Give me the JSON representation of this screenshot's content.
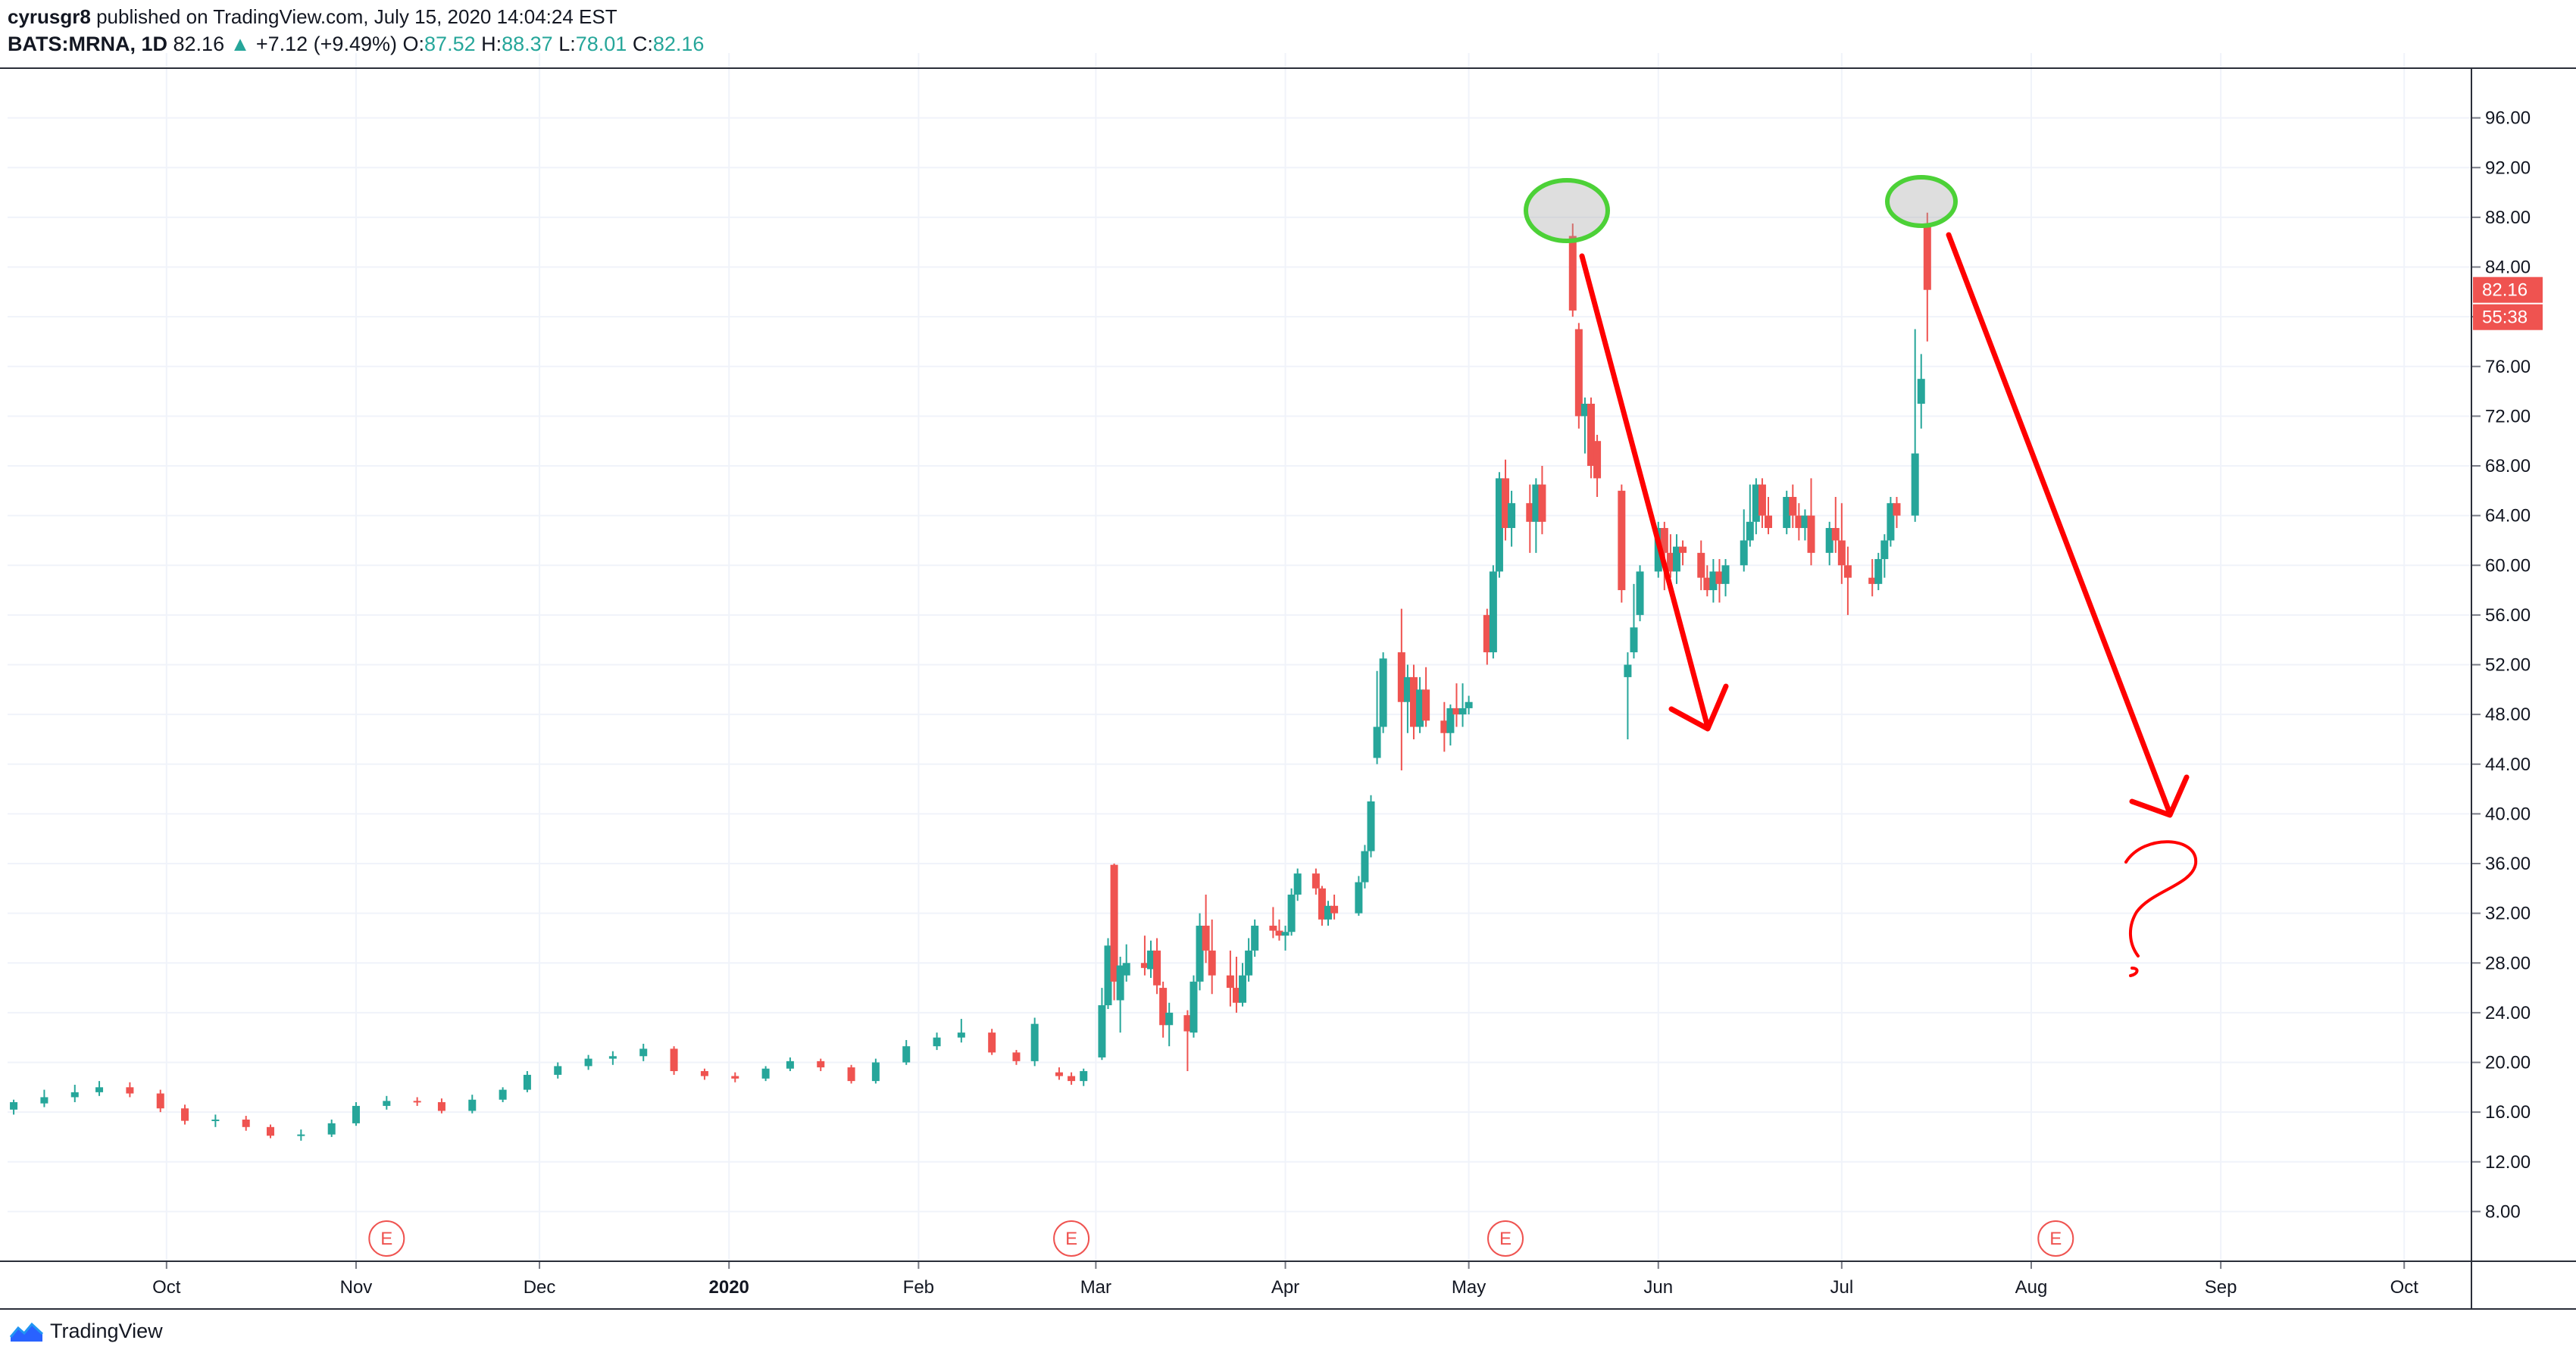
{
  "header": {
    "author": "cyrusgr8",
    "published": " published on TradingView.com, July 15, 2020 14:04:24 EST"
  },
  "legend": {
    "symbol": "BATS:MRNA, 1D",
    "last": "82.16",
    "change": "+7.12 (+9.49%)",
    "o_label": "O:",
    "o": "87.52",
    "h_label": "H:",
    "h": "88.37",
    "l_label": "L:",
    "l": "78.01",
    "c_label": "C:",
    "c": "82.16"
  },
  "branding": {
    "logo_text": "TradingView",
    "logo_icon": "tradingview-logo-icon"
  },
  "colors": {
    "up": "#26a69a",
    "down": "#ef5350",
    "grid": "#f0f3fa",
    "annotation": "#ff0000",
    "highlight": "#4cd137"
  },
  "price_tags": {
    "last_price": "82.16",
    "countdown": "55:38"
  },
  "earnings_marker": "E",
  "chart_data": {
    "type": "candlestick",
    "title": "",
    "ylim": [
      4,
      100
    ],
    "y_ticks": [
      "96.00",
      "92.00",
      "88.00",
      "84.00",
      "80.00",
      "76.00",
      "72.00",
      "68.00",
      "64.00",
      "60.00",
      "56.00",
      "52.00",
      "48.00",
      "44.00",
      "40.00",
      "36.00",
      "32.00",
      "28.00",
      "24.00",
      "20.00",
      "16.00",
      "12.00",
      "8.00"
    ],
    "x_tick_labels": [
      "Oct",
      "Nov",
      "Dec",
      "2020",
      "Feb",
      "Mar",
      "Apr",
      "May",
      "Jun",
      "Jul",
      "Aug",
      "Sep",
      "Oct"
    ],
    "x_tick_dates": [
      "2019-10-01",
      "2019-11-01",
      "2019-12-01",
      "2020-01-01",
      "2020-02-01",
      "2020-03-01",
      "2020-04-01",
      "2020-05-01",
      "2020-06-01",
      "2020-07-01",
      "2020-08-01",
      "2020-09-01",
      "2020-10-01"
    ],
    "xlim": [
      "2019-09-05",
      "2020-10-12"
    ],
    "earnings_dates": [
      "2019-11-06",
      "2020-02-26",
      "2020-05-07",
      "2020-08-05"
    ],
    "candles": [
      {
        "d": "2019-09-06",
        "o": 16.2,
        "h": 17.0,
        "l": 15.8,
        "c": 16.8
      },
      {
        "d": "2019-09-11",
        "o": 16.7,
        "h": 17.8,
        "l": 16.4,
        "c": 17.2
      },
      {
        "d": "2019-09-16",
        "o": 17.2,
        "h": 18.2,
        "l": 16.8,
        "c": 17.6
      },
      {
        "d": "2019-09-20",
        "o": 17.6,
        "h": 18.5,
        "l": 17.3,
        "c": 18.0
      },
      {
        "d": "2019-09-25",
        "o": 18.0,
        "h": 18.4,
        "l": 17.2,
        "c": 17.5
      },
      {
        "d": "2019-09-30",
        "o": 17.5,
        "h": 17.8,
        "l": 16.0,
        "c": 16.3
      },
      {
        "d": "2019-10-04",
        "o": 16.3,
        "h": 16.6,
        "l": 15.0,
        "c": 15.3
      },
      {
        "d": "2019-10-09",
        "o": 15.3,
        "h": 15.8,
        "l": 14.8,
        "c": 15.4
      },
      {
        "d": "2019-10-14",
        "o": 15.4,
        "h": 15.7,
        "l": 14.5,
        "c": 14.8
      },
      {
        "d": "2019-10-18",
        "o": 14.8,
        "h": 15.0,
        "l": 13.9,
        "c": 14.1
      },
      {
        "d": "2019-10-23",
        "o": 14.1,
        "h": 14.6,
        "l": 13.7,
        "c": 14.2
      },
      {
        "d": "2019-10-28",
        "o": 14.2,
        "h": 15.4,
        "l": 14.0,
        "c": 15.1
      },
      {
        "d": "2019-11-01",
        "o": 15.1,
        "h": 16.8,
        "l": 14.9,
        "c": 16.5
      },
      {
        "d": "2019-11-06",
        "o": 16.5,
        "h": 17.3,
        "l": 16.2,
        "c": 16.9
      },
      {
        "d": "2019-11-11",
        "o": 16.9,
        "h": 17.2,
        "l": 16.5,
        "c": 16.8
      },
      {
        "d": "2019-11-15",
        "o": 16.8,
        "h": 17.1,
        "l": 15.9,
        "c": 16.1
      },
      {
        "d": "2019-11-20",
        "o": 16.1,
        "h": 17.4,
        "l": 15.9,
        "c": 17.0
      },
      {
        "d": "2019-11-25",
        "o": 17.0,
        "h": 18.0,
        "l": 16.8,
        "c": 17.8
      },
      {
        "d": "2019-11-29",
        "o": 17.8,
        "h": 19.3,
        "l": 17.6,
        "c": 19.0
      },
      {
        "d": "2019-12-04",
        "o": 19.0,
        "h": 20.0,
        "l": 18.7,
        "c": 19.7
      },
      {
        "d": "2019-12-09",
        "o": 19.7,
        "h": 20.6,
        "l": 19.4,
        "c": 20.3
      },
      {
        "d": "2019-12-13",
        "o": 20.3,
        "h": 20.9,
        "l": 19.8,
        "c": 20.5
      },
      {
        "d": "2019-12-18",
        "o": 20.5,
        "h": 21.5,
        "l": 20.1,
        "c": 21.1
      },
      {
        "d": "2019-12-23",
        "o": 21.1,
        "h": 21.3,
        "l": 19.0,
        "c": 19.3
      },
      {
        "d": "2019-12-28",
        "o": 19.3,
        "h": 19.5,
        "l": 18.6,
        "c": 18.9
      },
      {
        "d": "2020-01-02",
        "o": 18.9,
        "h": 19.2,
        "l": 18.4,
        "c": 18.7
      },
      {
        "d": "2020-01-07",
        "o": 18.7,
        "h": 19.7,
        "l": 18.5,
        "c": 19.5
      },
      {
        "d": "2020-01-11",
        "o": 19.5,
        "h": 20.4,
        "l": 19.3,
        "c": 20.1
      },
      {
        "d": "2020-01-16",
        "o": 20.1,
        "h": 20.3,
        "l": 19.3,
        "c": 19.6
      },
      {
        "d": "2020-01-21",
        "o": 19.6,
        "h": 19.8,
        "l": 18.3,
        "c": 18.5
      },
      {
        "d": "2020-01-25",
        "o": 18.5,
        "h": 20.3,
        "l": 18.3,
        "c": 20.0
      },
      {
        "d": "2020-01-30",
        "o": 20.0,
        "h": 21.8,
        "l": 19.8,
        "c": 21.3
      },
      {
        "d": "2020-02-04",
        "o": 21.3,
        "h": 22.4,
        "l": 21.0,
        "c": 22.0
      },
      {
        "d": "2020-02-08",
        "o": 22.0,
        "h": 23.5,
        "l": 21.6,
        "c": 22.4
      },
      {
        "d": "2020-02-13",
        "o": 22.4,
        "h": 22.7,
        "l": 20.6,
        "c": 20.8
      },
      {
        "d": "2020-02-17",
        "o": 20.8,
        "h": 21.0,
        "l": 19.8,
        "c": 20.1
      },
      {
        "d": "2020-02-20",
        "o": 20.1,
        "h": 23.6,
        "l": 19.7,
        "c": 23.1
      },
      {
        "d": "2020-02-24",
        "o": 19.2,
        "h": 19.6,
        "l": 18.6,
        "c": 18.9
      },
      {
        "d": "2020-02-26",
        "o": 18.9,
        "h": 19.2,
        "l": 18.2,
        "c": 18.5
      },
      {
        "d": "2020-02-28",
        "o": 18.5,
        "h": 19.5,
        "l": 18.1,
        "c": 19.3
      },
      {
        "d": "2020-03-02",
        "o": 20.4,
        "h": 26.0,
        "l": 20.2,
        "c": 24.6
      },
      {
        "d": "2020-03-03",
        "o": 24.6,
        "h": 30.0,
        "l": 24.3,
        "c": 29.4
      },
      {
        "d": "2020-03-04",
        "o": 35.9,
        "h": 36.0,
        "l": 25.0,
        "c": 26.5
      },
      {
        "d": "2020-03-05",
        "o": 25.0,
        "h": 28.5,
        "l": 22.4,
        "c": 27.8
      },
      {
        "d": "2020-03-06",
        "o": 27.0,
        "h": 29.5,
        "l": 26.5,
        "c": 28.0
      },
      {
        "d": "2020-03-09",
        "o": 28.0,
        "h": 30.2,
        "l": 27.0,
        "c": 27.6
      },
      {
        "d": "2020-03-10",
        "o": 27.5,
        "h": 29.8,
        "l": 26.8,
        "c": 29.0
      },
      {
        "d": "2020-03-11",
        "o": 29.0,
        "h": 30.0,
        "l": 25.5,
        "c": 26.2
      },
      {
        "d": "2020-03-12",
        "o": 26.0,
        "h": 26.5,
        "l": 22.0,
        "c": 23.0
      },
      {
        "d": "2020-03-13",
        "o": 23.0,
        "h": 24.8,
        "l": 21.3,
        "c": 24.0
      },
      {
        "d": "2020-03-16",
        "o": 23.8,
        "h": 24.2,
        "l": 19.3,
        "c": 22.5
      },
      {
        "d": "2020-03-17",
        "o": 22.4,
        "h": 27.0,
        "l": 22.0,
        "c": 26.5
      },
      {
        "d": "2020-03-18",
        "o": 26.5,
        "h": 32.0,
        "l": 25.8,
        "c": 31.0
      },
      {
        "d": "2020-03-19",
        "o": 31.0,
        "h": 33.5,
        "l": 28.0,
        "c": 29.0
      },
      {
        "d": "2020-03-20",
        "o": 29.0,
        "h": 31.5,
        "l": 25.5,
        "c": 27.0
      },
      {
        "d": "2020-03-23",
        "o": 27.0,
        "h": 29.0,
        "l": 24.5,
        "c": 26.0
      },
      {
        "d": "2020-03-24",
        "o": 26.0,
        "h": 28.5,
        "l": 24.0,
        "c": 24.8
      },
      {
        "d": "2020-03-25",
        "o": 24.8,
        "h": 28.0,
        "l": 24.5,
        "c": 27.0
      },
      {
        "d": "2020-03-26",
        "o": 27.0,
        "h": 30.0,
        "l": 26.5,
        "c": 29.0
      },
      {
        "d": "2020-03-27",
        "o": 29.0,
        "h": 31.5,
        "l": 28.5,
        "c": 31.0
      },
      {
        "d": "2020-03-30",
        "o": 31.0,
        "h": 32.5,
        "l": 30.0,
        "c": 30.6
      },
      {
        "d": "2020-03-31",
        "o": 30.6,
        "h": 31.5,
        "l": 29.8,
        "c": 30.2
      },
      {
        "d": "2020-04-01",
        "o": 30.2,
        "h": 31.0,
        "l": 29.0,
        "c": 30.5
      },
      {
        "d": "2020-04-02",
        "o": 30.5,
        "h": 34.0,
        "l": 30.2,
        "c": 33.5
      },
      {
        "d": "2020-04-03",
        "o": 33.5,
        "h": 35.6,
        "l": 33.0,
        "c": 35.2
      },
      {
        "d": "2020-04-06",
        "o": 35.2,
        "h": 35.6,
        "l": 33.5,
        "c": 34.0
      },
      {
        "d": "2020-04-07",
        "o": 34.0,
        "h": 34.2,
        "l": 31.0,
        "c": 31.5
      },
      {
        "d": "2020-04-08",
        "o": 31.5,
        "h": 33.0,
        "l": 31.0,
        "c": 32.6
      },
      {
        "d": "2020-04-09",
        "o": 32.6,
        "h": 33.5,
        "l": 31.5,
        "c": 32.0
      },
      {
        "d": "2020-04-13",
        "o": 32.0,
        "h": 35.0,
        "l": 31.8,
        "c": 34.5
      },
      {
        "d": "2020-04-14",
        "o": 34.5,
        "h": 37.5,
        "l": 34.0,
        "c": 37.0
      },
      {
        "d": "2020-04-15",
        "o": 37.0,
        "h": 41.5,
        "l": 36.5,
        "c": 41.0
      },
      {
        "d": "2020-04-16",
        "o": 44.5,
        "h": 51.5,
        "l": 44.0,
        "c": 47.0
      },
      {
        "d": "2020-04-17",
        "o": 47.0,
        "h": 53.0,
        "l": 46.5,
        "c": 52.5
      },
      {
        "d": "2020-04-20",
        "o": 53.0,
        "h": 56.5,
        "l": 43.5,
        "c": 49.0
      },
      {
        "d": "2020-04-21",
        "o": 49.0,
        "h": 52.0,
        "l": 46.5,
        "c": 51.0
      },
      {
        "d": "2020-04-22",
        "o": 51.0,
        "h": 52.0,
        "l": 46.0,
        "c": 47.0
      },
      {
        "d": "2020-04-23",
        "o": 47.0,
        "h": 51.0,
        "l": 46.5,
        "c": 50.0
      },
      {
        "d": "2020-04-24",
        "o": 50.0,
        "h": 51.8,
        "l": 47.0,
        "c": 47.5
      },
      {
        "d": "2020-04-27",
        "o": 47.5,
        "h": 49.0,
        "l": 45.0,
        "c": 46.5
      },
      {
        "d": "2020-04-28",
        "o": 46.5,
        "h": 48.8,
        "l": 45.5,
        "c": 48.5
      },
      {
        "d": "2020-04-29",
        "o": 48.5,
        "h": 50.5,
        "l": 47.0,
        "c": 48.0
      },
      {
        "d": "2020-04-30",
        "o": 48.0,
        "h": 50.5,
        "l": 47.0,
        "c": 48.5
      },
      {
        "d": "2020-05-01",
        "o": 48.5,
        "h": 49.5,
        "l": 48.0,
        "c": 49.0
      },
      {
        "d": "2020-05-04",
        "o": 56.0,
        "h": 56.5,
        "l": 52.0,
        "c": 53.0
      },
      {
        "d": "2020-05-05",
        "o": 53.0,
        "h": 60.0,
        "l": 52.5,
        "c": 59.5
      },
      {
        "d": "2020-05-06",
        "o": 59.5,
        "h": 67.5,
        "l": 59.0,
        "c": 67.0
      },
      {
        "d": "2020-05-07",
        "o": 67.0,
        "h": 68.5,
        "l": 62.0,
        "c": 63.0
      },
      {
        "d": "2020-05-08",
        "o": 63.0,
        "h": 66.0,
        "l": 61.5,
        "c": 65.0
      },
      {
        "d": "2020-05-11",
        "o": 65.0,
        "h": 66.5,
        "l": 61.0,
        "c": 63.5
      },
      {
        "d": "2020-05-12",
        "o": 63.5,
        "h": 67.0,
        "l": 61.0,
        "c": 66.5
      },
      {
        "d": "2020-05-13",
        "o": 66.5,
        "h": 68.0,
        "l": 62.5,
        "c": 63.5
      },
      {
        "d": "2020-05-18",
        "o": 86.5,
        "h": 87.5,
        "l": 80.0,
        "c": 80.5
      },
      {
        "d": "2020-05-19",
        "o": 79.0,
        "h": 79.5,
        "l": 71.0,
        "c": 72.0
      },
      {
        "d": "2020-05-20",
        "o": 72.0,
        "h": 73.5,
        "l": 69.0,
        "c": 73.0
      },
      {
        "d": "2020-05-21",
        "o": 73.0,
        "h": 73.5,
        "l": 67.0,
        "c": 68.0
      },
      {
        "d": "2020-05-22",
        "o": 70.0,
        "h": 70.5,
        "l": 65.5,
        "c": 67.0
      },
      {
        "d": "2020-05-26",
        "o": 66.0,
        "h": 66.5,
        "l": 57.0,
        "c": 58.0
      },
      {
        "d": "2020-05-27",
        "o": 51.0,
        "h": 53.0,
        "l": 46.0,
        "c": 52.0
      },
      {
        "d": "2020-05-28",
        "o": 53.0,
        "h": 58.5,
        "l": 52.5,
        "c": 55.0
      },
      {
        "d": "2020-05-29",
        "o": 56.0,
        "h": 60.0,
        "l": 55.5,
        "c": 59.5
      },
      {
        "d": "2020-06-01",
        "o": 59.5,
        "h": 63.5,
        "l": 59.0,
        "c": 63.0
      },
      {
        "d": "2020-06-02",
        "o": 63.0,
        "h": 63.5,
        "l": 58.0,
        "c": 61.0
      },
      {
        "d": "2020-06-03",
        "o": 61.0,
        "h": 62.5,
        "l": 59.0,
        "c": 59.5
      },
      {
        "d": "2020-06-04",
        "o": 59.5,
        "h": 62.5,
        "l": 58.5,
        "c": 61.5
      },
      {
        "d": "2020-06-05",
        "o": 61.5,
        "h": 62.0,
        "l": 60.0,
        "c": 61.0
      },
      {
        "d": "2020-06-08",
        "o": 61.0,
        "h": 62.0,
        "l": 58.0,
        "c": 59.0
      },
      {
        "d": "2020-06-09",
        "o": 59.0,
        "h": 60.0,
        "l": 57.5,
        "c": 58.0
      },
      {
        "d": "2020-06-10",
        "o": 58.0,
        "h": 60.5,
        "l": 57.0,
        "c": 59.5
      },
      {
        "d": "2020-06-11",
        "o": 59.5,
        "h": 60.5,
        "l": 57.0,
        "c": 58.5
      },
      {
        "d": "2020-06-12",
        "o": 58.5,
        "h": 60.5,
        "l": 57.5,
        "c": 60.0
      },
      {
        "d": "2020-06-15",
        "o": 60.0,
        "h": 64.5,
        "l": 59.5,
        "c": 62.0
      },
      {
        "d": "2020-06-16",
        "o": 62.0,
        "h": 66.5,
        "l": 61.5,
        "c": 63.5
      },
      {
        "d": "2020-06-17",
        "o": 63.5,
        "h": 67.0,
        "l": 62.5,
        "c": 66.5
      },
      {
        "d": "2020-06-18",
        "o": 66.5,
        "h": 67.0,
        "l": 63.0,
        "c": 64.0
      },
      {
        "d": "2020-06-19",
        "o": 64.0,
        "h": 65.5,
        "l": 62.5,
        "c": 63.0
      },
      {
        "d": "2020-06-22",
        "o": 63.0,
        "h": 66.0,
        "l": 62.5,
        "c": 65.5
      },
      {
        "d": "2020-06-23",
        "o": 65.5,
        "h": 66.5,
        "l": 63.0,
        "c": 64.0
      },
      {
        "d": "2020-06-24",
        "o": 64.0,
        "h": 65.0,
        "l": 62.0,
        "c": 63.0
      },
      {
        "d": "2020-06-25",
        "o": 63.0,
        "h": 64.5,
        "l": 62.0,
        "c": 64.0
      },
      {
        "d": "2020-06-26",
        "o": 64.0,
        "h": 67.0,
        "l": 60.0,
        "c": 61.0
      },
      {
        "d": "2020-06-29",
        "o": 61.0,
        "h": 63.5,
        "l": 60.0,
        "c": 63.0
      },
      {
        "d": "2020-06-30",
        "o": 63.0,
        "h": 65.5,
        "l": 61.0,
        "c": 62.0
      },
      {
        "d": "2020-07-01",
        "o": 62.0,
        "h": 65.0,
        "l": 58.5,
        "c": 60.0
      },
      {
        "d": "2020-07-02",
        "o": 60.0,
        "h": 61.5,
        "l": 56.0,
        "c": 59.0
      },
      {
        "d": "2020-07-06",
        "o": 59.0,
        "h": 60.5,
        "l": 57.5,
        "c": 58.5
      },
      {
        "d": "2020-07-07",
        "o": 58.5,
        "h": 61.0,
        "l": 58.0,
        "c": 60.5
      },
      {
        "d": "2020-07-08",
        "o": 60.5,
        "h": 62.5,
        "l": 59.0,
        "c": 62.0
      },
      {
        "d": "2020-07-09",
        "o": 62.0,
        "h": 65.5,
        "l": 61.5,
        "c": 65.0
      },
      {
        "d": "2020-07-10",
        "o": 65.0,
        "h": 65.5,
        "l": 63.0,
        "c": 64.0
      },
      {
        "d": "2020-07-13",
        "o": 64.0,
        "h": 79.0,
        "l": 63.5,
        "c": 69.0
      },
      {
        "d": "2020-07-14",
        "o": 73.0,
        "h": 77.0,
        "l": 71.0,
        "c": 75.0
      },
      {
        "d": "2020-07-15",
        "o": 87.52,
        "h": 88.37,
        "l": 78.01,
        "c": 82.16
      }
    ]
  }
}
